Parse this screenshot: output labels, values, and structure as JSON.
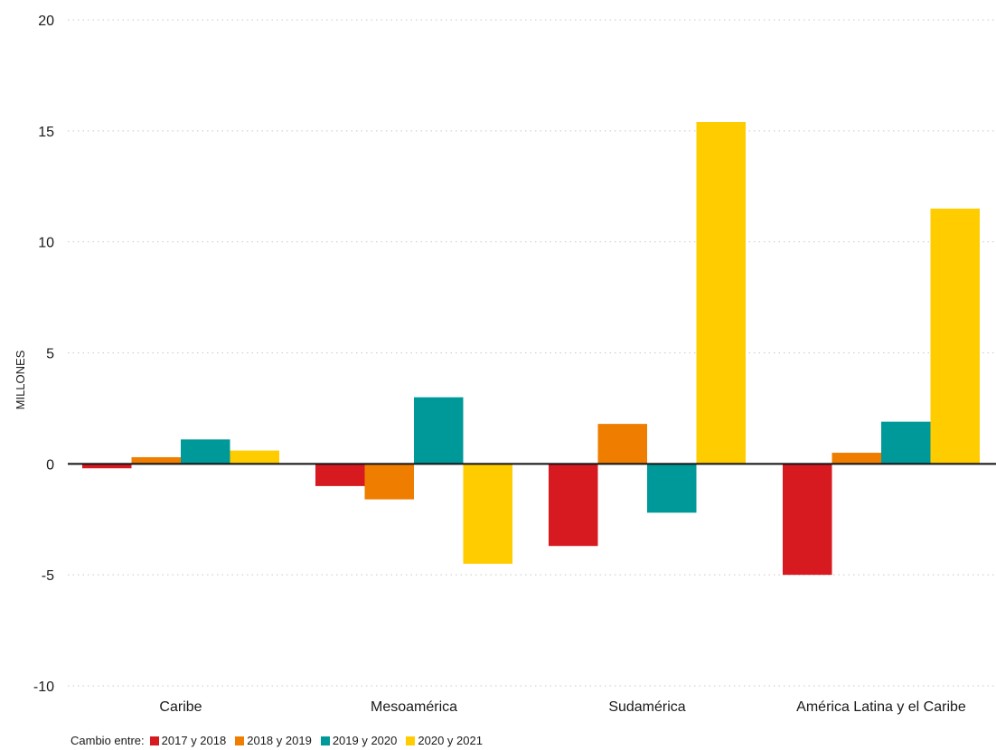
{
  "chart_data": {
    "type": "bar",
    "title": "",
    "xlabel": "",
    "ylabel": "MILLONES",
    "ylim": [
      -10,
      20
    ],
    "yticks": [
      -10,
      -5,
      0,
      5,
      10,
      15,
      20
    ],
    "ytick_labels": [
      "-10",
      "-5",
      "0",
      "5",
      "10",
      "15",
      "20"
    ],
    "grid": true,
    "legend_position": "bottom-left",
    "legend_title": "Cambio entre:",
    "categories": [
      "Caribe",
      "Mesoamérica",
      "Sudamérica",
      "América Latina y el Caribe"
    ],
    "series": [
      {
        "name": "2017 y 2018",
        "color": "#d71920",
        "values": [
          -0.2,
          -1.0,
          -3.7,
          -5.0
        ]
      },
      {
        "name": "2018 y 2019",
        "color": "#ee7d00",
        "values": [
          0.3,
          -1.6,
          1.8,
          0.5
        ]
      },
      {
        "name": "2019 y 2020",
        "color": "#009999",
        "values": [
          1.1,
          3.0,
          -2.2,
          1.9
        ]
      },
      {
        "name": "2020 y 2021",
        "color": "#ffcc00",
        "values": [
          0.6,
          -4.5,
          15.4,
          11.5
        ]
      }
    ]
  }
}
